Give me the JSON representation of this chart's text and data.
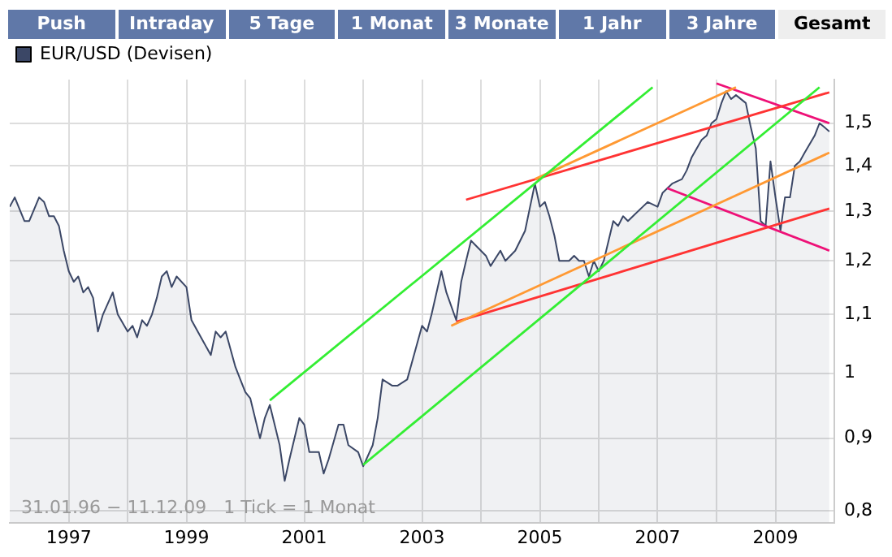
{
  "chart_data": {
    "type": "area",
    "legend": "top left",
    "grid": true,
    "marker": "none",
    "log": "y",
    "annotations": [
      "Push",
      "Intraday",
      "5 Tage",
      "1 Monat",
      "3 Monate",
      "1 Jahr",
      "3 Jahre",
      "Gesamt",
      "31.01.96 − 11.12.09   1 Tick = 1 Monat"
    ],
    "xlim": [
      "1996",
      "2010"
    ],
    "xticks": [
      "1997",
      {
        "value": "1998",
        "label": null
      },
      "1999",
      {
        "value": "2000",
        "label": null
      },
      "2001",
      {
        "value": "2002",
        "label": null
      },
      "2003",
      {
        "value": "2004",
        "label": null
      },
      "2005",
      {
        "value": "2006",
        "label": null
      },
      "2007",
      {
        "value": "2008",
        "label": null
      },
      "2009"
    ],
    "ylim": [
      0.785,
      1.61
    ],
    "yticks": [
      {
        "value": 0.8,
        "label": "0,8"
      },
      {
        "value": 0.9,
        "label": "0,9"
      },
      1,
      {
        "value": 1.1,
        "label": "1,1"
      },
      {
        "value": 1.2,
        "label": "1,2"
      },
      {
        "value": 1.3,
        "label": "1,3"
      },
      {
        "value": 1.4,
        "label": "1,4"
      },
      {
        "value": 1.5,
        "label": "1,5"
      }
    ],
    "series": [
      {
        "name": "EUR/USD (Devisen)",
        "color": "#3b4766",
        "x": [
          "1996-01",
          "1996-02",
          "1996-04",
          "1996-05",
          "1996-07",
          "1996-08",
          "1996-09",
          "1996-10",
          "1996-11",
          "1996-12",
          "1997-01",
          "1997-02",
          "1997-03",
          "1997-04",
          "1997-05",
          "1997-06",
          "1997-07",
          "1997-08",
          "1997-10",
          "1997-11",
          "1998-01",
          "1998-02",
          "1998-03",
          "1998-04",
          "1998-05",
          "1998-06",
          "1998-07",
          "1998-08",
          "1998-09",
          "1998-10",
          "1998-11",
          "1999-01",
          "1999-02",
          "1999-04",
          "1999-06",
          "1999-07",
          "1999-08",
          "1999-09",
          "1999-10",
          "1999-11",
          "1999-12",
          "2000-01",
          "2000-02",
          "2000-04",
          "2000-05",
          "2000-06",
          "2000-08",
          "2000-09",
          "2000-10",
          "2000-12",
          "2001-01",
          "2001-02",
          "2001-04",
          "2001-05",
          "2001-06",
          "2001-08",
          "2001-09",
          "2001-10",
          "2001-12",
          "2002-01",
          "2002-03",
          "2002-04",
          "2002-05",
          "2002-07",
          "2002-08",
          "2002-10",
          "2003-01",
          "2003-02",
          "2003-03",
          "2003-05",
          "2003-06",
          "2003-08",
          "2003-09",
          "2003-10",
          "2003-11",
          "2003-12",
          "2004-02",
          "2004-03",
          "2004-05",
          "2004-06",
          "2004-08",
          "2004-10",
          "2004-11",
          "2004-12",
          "2005-01",
          "2005-02",
          "2005-03",
          "2005-04",
          "2005-05",
          "2005-07",
          "2005-08",
          "2005-09",
          "2005-10",
          "2005-11",
          "2005-12",
          "2006-01",
          "2006-02",
          "2006-04",
          "2006-05",
          "2006-06",
          "2006-07",
          "2006-08",
          "2006-10",
          "2006-11",
          "2007-01",
          "2007-02",
          "2007-04",
          "2007-06",
          "2007-07",
          "2007-08",
          "2007-10",
          "2007-11",
          "2007-12",
          "2008-01",
          "2008-02",
          "2008-03",
          "2008-04",
          "2008-05",
          "2008-07",
          "2008-08",
          "2008-09",
          "2008-10",
          "2008-11",
          "2008-12",
          "2009-01",
          "2009-02",
          "2009-03",
          "2009-04",
          "2009-05",
          "2009-06",
          "2009-07",
          "2009-09",
          "2009-10",
          "2009-11",
          "2009-12"
        ],
        "values": [
          1.31,
          1.33,
          1.28,
          1.28,
          1.33,
          1.32,
          1.29,
          1.29,
          1.27,
          1.22,
          1.18,
          1.16,
          1.17,
          1.14,
          1.15,
          1.13,
          1.07,
          1.1,
          1.14,
          1.1,
          1.07,
          1.08,
          1.06,
          1.09,
          1.08,
          1.1,
          1.13,
          1.17,
          1.18,
          1.15,
          1.17,
          1.15,
          1.09,
          1.06,
          1.03,
          1.07,
          1.06,
          1.07,
          1.04,
          1.01,
          0.99,
          0.97,
          0.96,
          0.9,
          0.93,
          0.95,
          0.89,
          0.84,
          0.87,
          0.93,
          0.92,
          0.88,
          0.88,
          0.85,
          0.87,
          0.92,
          0.92,
          0.89,
          0.88,
          0.86,
          0.89,
          0.93,
          0.99,
          0.98,
          0.98,
          0.99,
          1.08,
          1.07,
          1.1,
          1.18,
          1.14,
          1.09,
          1.16,
          1.2,
          1.24,
          1.23,
          1.21,
          1.19,
          1.22,
          1.2,
          1.22,
          1.26,
          1.31,
          1.36,
          1.31,
          1.32,
          1.29,
          1.25,
          1.2,
          1.2,
          1.21,
          1.2,
          1.2,
          1.17,
          1.2,
          1.18,
          1.2,
          1.28,
          1.27,
          1.29,
          1.28,
          1.29,
          1.31,
          1.32,
          1.31,
          1.34,
          1.36,
          1.37,
          1.39,
          1.42,
          1.46,
          1.47,
          1.5,
          1.51,
          1.55,
          1.58,
          1.56,
          1.57,
          1.55,
          1.49,
          1.44,
          1.28,
          1.27,
          1.41,
          1.33,
          1.26,
          1.33,
          1.33,
          1.4,
          1.41,
          1.43,
          1.47,
          1.5,
          1.49,
          1.48
        ]
      },
      {
        "type": "line",
        "color": "#33ee33",
        "x": [
          "2000-06",
          "2006-12"
        ],
        "values": [
          0.957,
          1.59
        ]
      },
      {
        "type": "line",
        "color": "#33ee33",
        "x": [
          "2002-01",
          "2009-10"
        ],
        "values": [
          0.862,
          1.59
        ]
      },
      {
        "type": "line",
        "color": "#ff9933",
        "x": [
          "2003-07",
          "2009-12"
        ],
        "values": [
          1.08,
          1.43
        ]
      },
      {
        "type": "line",
        "color": "#ff9933",
        "x": [
          "2004-12",
          "2008-05"
        ],
        "values": [
          1.37,
          1.59
        ]
      },
      {
        "type": "line",
        "color": "#ff3333",
        "x": [
          "2003-10",
          "2009-12"
        ],
        "values": [
          1.325,
          1.577
        ]
      },
      {
        "type": "line",
        "color": "#ff3333",
        "x": [
          "2003-08",
          "2009-12"
        ],
        "values": [
          1.087,
          1.306
        ]
      },
      {
        "type": "line",
        "color": "#ee1177",
        "x": [
          "2008-01",
          "2009-12"
        ],
        "values": [
          1.6,
          1.5
        ]
      },
      {
        "type": "line",
        "color": "#ee1177",
        "x": [
          "2007-03",
          "2009-12"
        ],
        "values": [
          1.35,
          1.22
        ]
      }
    ]
  }
}
